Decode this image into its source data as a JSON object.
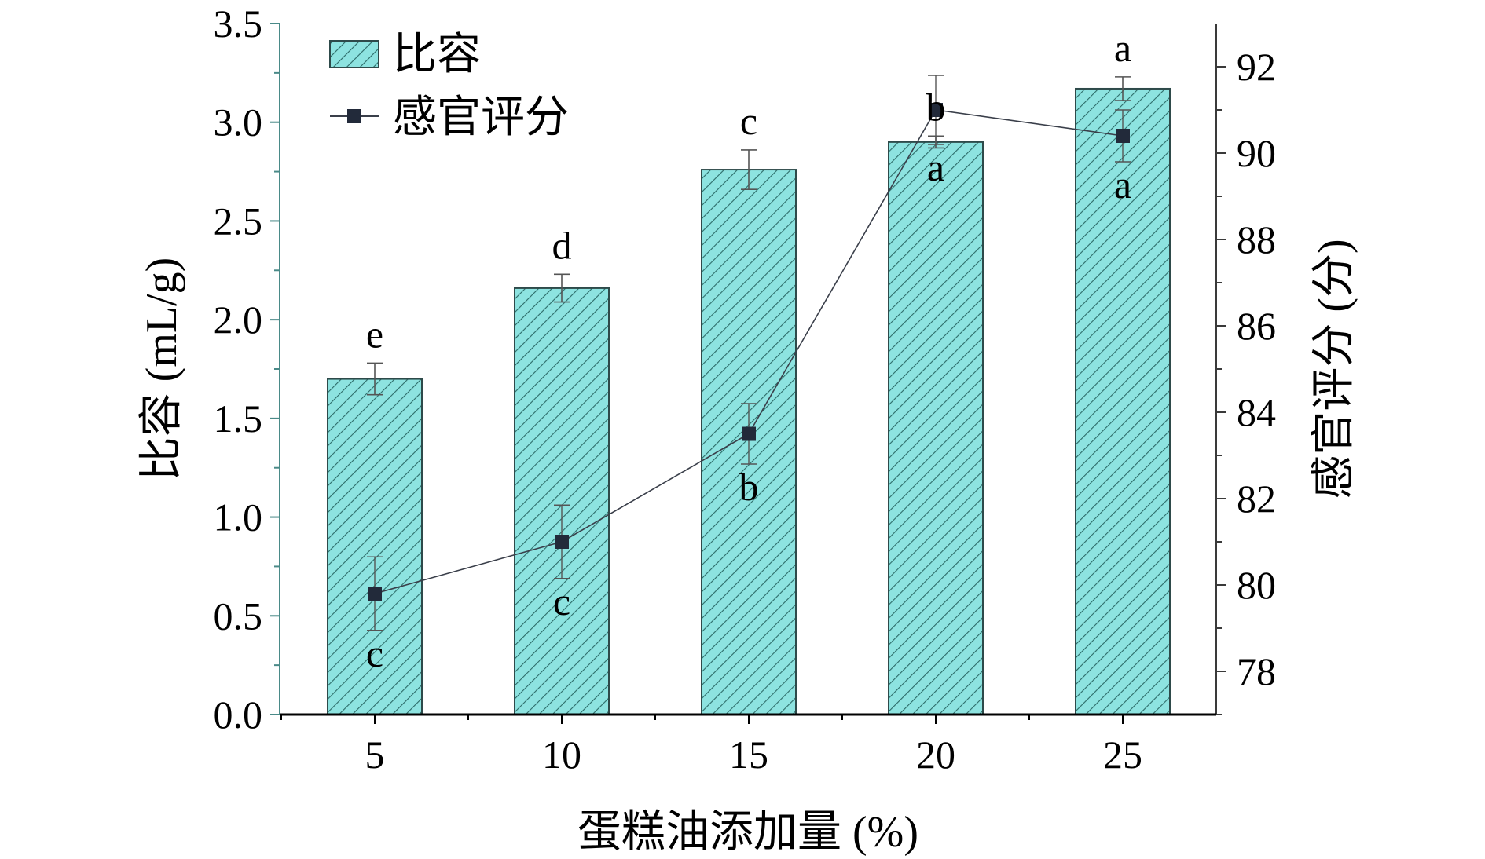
{
  "chart_data": {
    "type": "bar",
    "title": "",
    "categories": [
      "5",
      "10",
      "15",
      "20",
      "25"
    ],
    "xlabel": "蛋糕油添加量 (%)",
    "ylabel": "比容 (mL/g)",
    "y2label": "感官评分 (分)",
    "ylim": [
      0,
      3.5
    ],
    "y2lim": [
      77,
      93
    ],
    "yticks": [
      "0.0",
      "0.5",
      "1.0",
      "1.5",
      "2.0",
      "2.5",
      "3.0",
      "3.5"
    ],
    "y2ticks": [
      "78",
      "80",
      "82",
      "84",
      "86",
      "88",
      "90",
      "92"
    ],
    "legend_position": "top-left",
    "series": [
      {
        "name": "比容",
        "type": "bar",
        "axis": "left",
        "values": [
          1.7,
          2.16,
          2.76,
          2.9,
          3.17
        ],
        "errors": [
          0.08,
          0.07,
          0.1,
          0.03,
          0.06
        ],
        "labels": [
          "e",
          "d",
          "c",
          "b",
          "a"
        ],
        "color": "#8de3e0",
        "hatch_color": "#2c6b68"
      },
      {
        "name": "感官评分",
        "type": "line",
        "axis": "right",
        "values": [
          79.8,
          81.0,
          83.5,
          91.0,
          90.4
        ],
        "errors": [
          0.85,
          0.85,
          0.7,
          0.8,
          0.6
        ],
        "labels": [
          "c",
          "c",
          "b",
          "a",
          "a"
        ],
        "color": "#222a3a"
      }
    ]
  }
}
